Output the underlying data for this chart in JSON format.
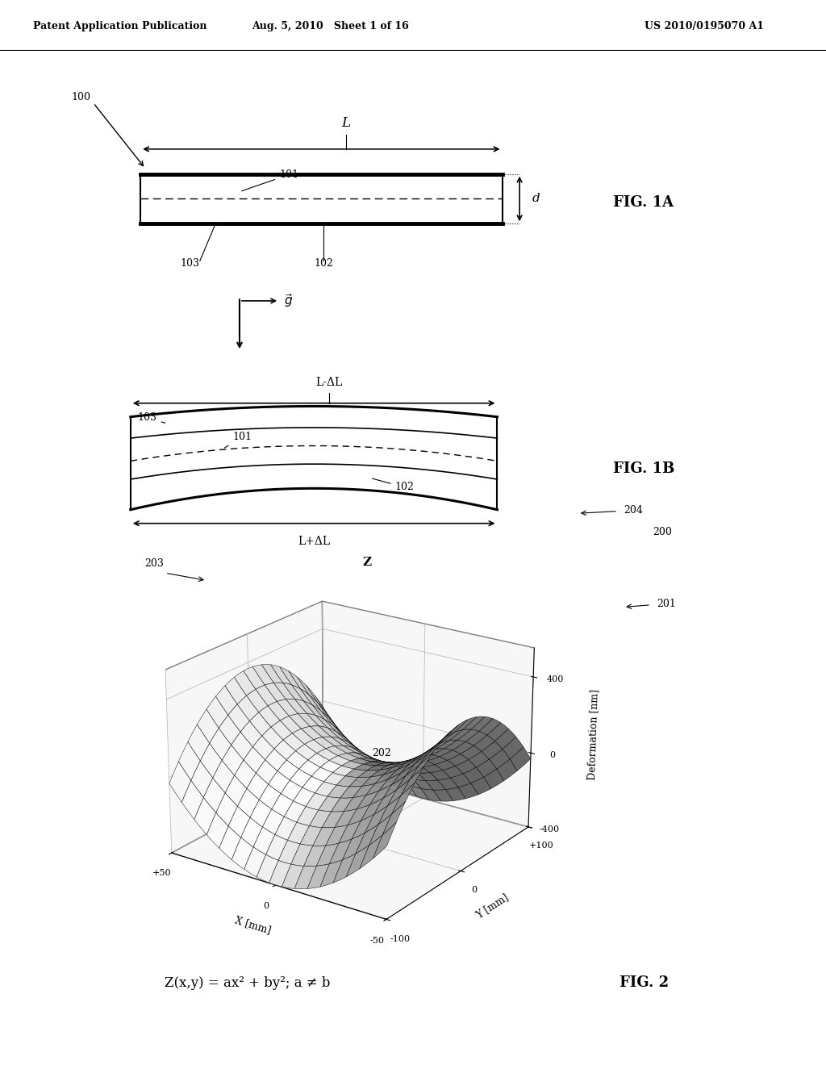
{
  "background_color": "#ffffff",
  "header_left": "Patent Application Publication",
  "header_center": "Aug. 5, 2010   Sheet 1 of 16",
  "header_right": "US 2010/0195070 A1",
  "fig1a_label": "FIG. 1A",
  "fig1b_label": "FIG. 1B",
  "fig2_label": "FIG. 2",
  "formula": "Z(x,y) = ax² + by²; a ≠ b",
  "ref100": "100",
  "ref101": "101",
  "ref102": "102",
  "ref103": "103",
  "ref200": "200",
  "ref201": "201",
  "ref202": "202",
  "ref203": "203",
  "ref204": "204",
  "label_L": "L",
  "label_d": "d",
  "label_g": "g",
  "label_L_minus_dL": "L-ΔL",
  "label_L_plus_dL": "L+ΔL",
  "label_Z": "Z",
  "label_X": "X [mm]",
  "label_Y": "Y [mm]",
  "label_deformation": "Deformation [nm]"
}
